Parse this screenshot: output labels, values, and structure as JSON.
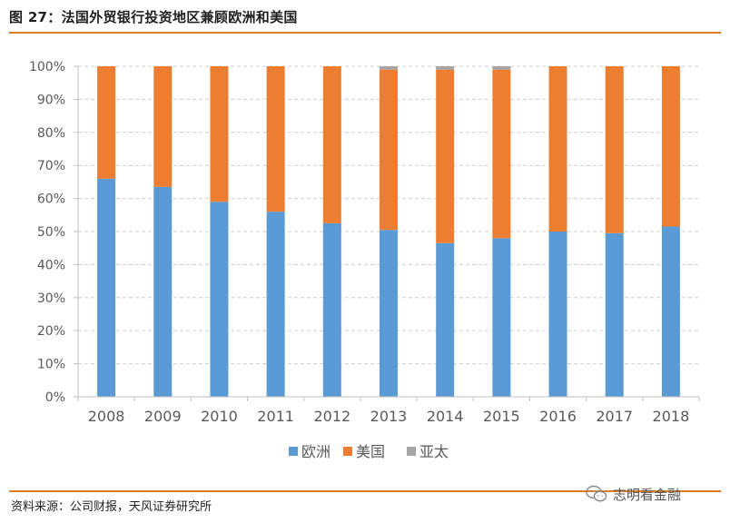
{
  "header": {
    "title": "图 27：法国外贸银行投资地区兼顾欧洲和美国"
  },
  "footer": {
    "source": "资料来源：公司财报，天风证券研究所",
    "watermark": "志明看金融"
  },
  "colors": {
    "accent": "#e07b26",
    "europe": "#5b9bd5",
    "america": "#ed7d31",
    "asia_pacific": "#a5a5a5"
  },
  "chart_data": {
    "type": "bar",
    "stacked": true,
    "title": "",
    "xlabel": "",
    "ylabel": "",
    "categories": [
      "2008",
      "2009",
      "2010",
      "2011",
      "2012",
      "2013",
      "2014",
      "2015",
      "2016",
      "2017",
      "2018"
    ],
    "series": [
      {
        "name": "欧洲",
        "color": "#5b9bd5",
        "values": [
          66,
          63.5,
          59,
          56,
          52.5,
          50.5,
          46.5,
          48,
          50,
          49.5,
          51.5
        ]
      },
      {
        "name": "美国",
        "color": "#ed7d31",
        "values": [
          34,
          36.5,
          41,
          44,
          47.5,
          48.5,
          52.5,
          51,
          50,
          50.5,
          48.5
        ]
      },
      {
        "name": "亚太",
        "color": "#a5a5a5",
        "values": [
          0,
          0,
          0,
          0,
          0,
          1,
          1,
          1,
          0,
          0,
          0
        ]
      }
    ],
    "ylim": [
      0,
      100
    ],
    "yticks": [
      "0%",
      "10%",
      "20%",
      "30%",
      "40%",
      "50%",
      "60%",
      "70%",
      "80%",
      "90%",
      "100%"
    ],
    "grid": true,
    "legend": "bottom"
  }
}
